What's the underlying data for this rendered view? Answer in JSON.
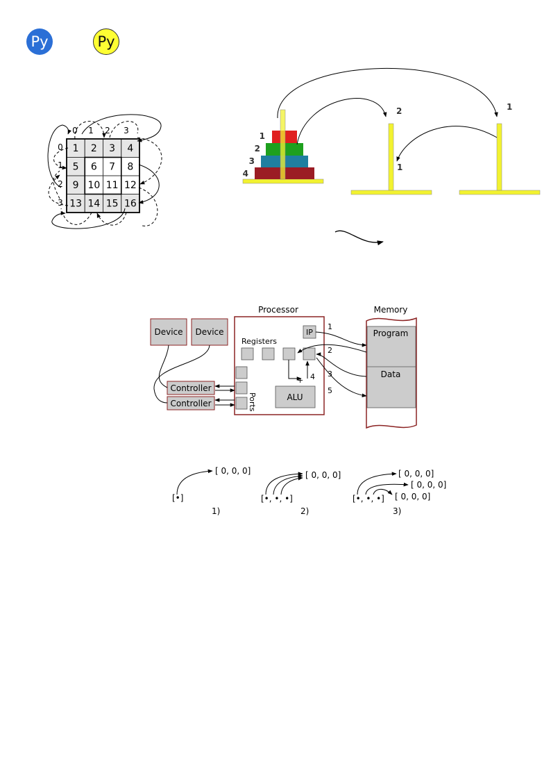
{
  "colors": {
    "badge_blue": "#2b6fd6",
    "badge_yellow": "#ffff33",
    "peg_yellow": "#f2f230",
    "disk_red": "#e01f1f",
    "disk_green": "#1ea01e",
    "disk_teal": "#1f7fa0",
    "disk_maroon": "#9b1c24",
    "box_gray": "#cccccc",
    "processor_border": "#8b2323",
    "grid_shade": "#e6e6e6"
  },
  "badges": {
    "blue": "Py",
    "yellow": "Py"
  },
  "grid": {
    "col_labels": [
      "0",
      "1",
      "2",
      "3"
    ],
    "row_labels": [
      "0",
      "1",
      "2",
      "3"
    ],
    "cells": [
      "1",
      "2",
      "3",
      "4",
      "5",
      "6",
      "7",
      "8",
      "9",
      "10",
      "11",
      "12",
      "13",
      "14",
      "15",
      "16"
    ]
  },
  "hanoi": {
    "disk_labels": [
      "1",
      "2",
      "3",
      "4"
    ],
    "arrow_labels": [
      "2",
      "1",
      "1"
    ]
  },
  "computer": {
    "processor": "Processor",
    "memory": "Memory",
    "device_1": "Device",
    "device_2": "Device",
    "controller_1": "Controller",
    "controller_2": "Controller",
    "ports": "Ports",
    "registers": "Registers",
    "ip": "IP",
    "alu": "ALU",
    "program": "Program",
    "data": "Data",
    "plus": "+",
    "steps": [
      "1",
      "2",
      "3",
      "4",
      "5"
    ]
  },
  "lists": {
    "panel_1": {
      "list": "[•]",
      "targets": [
        "[ 0, 0, 0]"
      ],
      "caption": "1)"
    },
    "panel_2": {
      "list": "[•, •, •]",
      "targets": [
        "[ 0, 0, 0]"
      ],
      "caption": "2)"
    },
    "panel_3": {
      "list": "[•, •, •]",
      "targets": [
        "[ 0, 0, 0]",
        "[ 0, 0, 0]",
        "[ 0, 0, 0]"
      ],
      "caption": "3)"
    }
  }
}
